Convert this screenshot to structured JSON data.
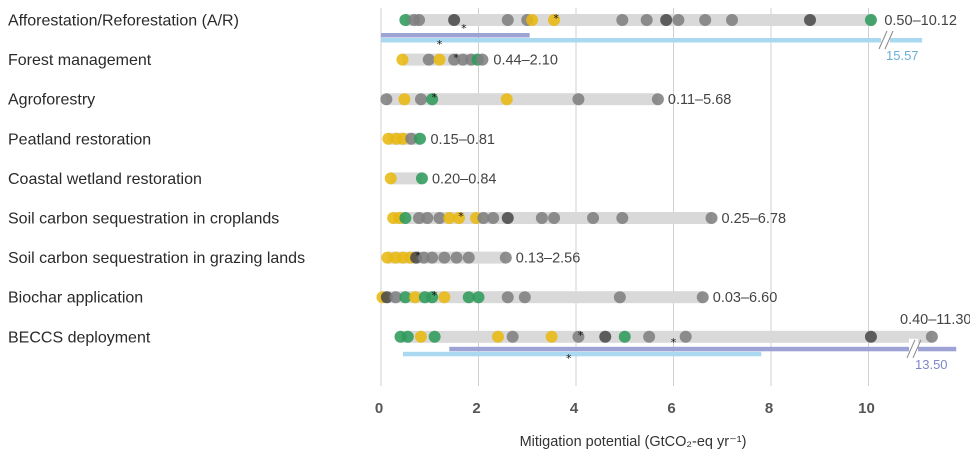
{
  "chart_data": {
    "type": "scatter",
    "xlabel": "Mitigation potential (GtCO₂-eq yr⁻¹)",
    "xticks": [
      0,
      2,
      4,
      6,
      8,
      10
    ],
    "xlim": [
      0,
      11.8
    ],
    "grid": "vertical",
    "colors": {
      "bar": "#d9d9d9",
      "grid": "#d0d0d0",
      "gray": "#7f7f7f",
      "dark": "#4a4a4a",
      "yellow": "#e8b810",
      "green": "#2f9a5b",
      "light_blue": "#a9d8f0",
      "lavender": "#9ea3d6"
    },
    "categories": [
      {
        "name": "Afforestation/Reforestation (A/R)",
        "range_label": "0.50–10.12",
        "range": [
          0.5,
          10.12
        ],
        "points": [
          {
            "x": 0.5,
            "c": "green"
          },
          {
            "x": 0.68,
            "c": "gray"
          },
          {
            "x": 0.78,
            "c": "gray"
          },
          {
            "x": 1.5,
            "c": "dark"
          },
          {
            "x": 2.6,
            "c": "gray"
          },
          {
            "x": 3.0,
            "c": "gray"
          },
          {
            "x": 3.1,
            "c": "yellow"
          },
          {
            "x": 3.55,
            "c": "yellow",
            "star": true
          },
          {
            "x": 4.95,
            "c": "gray"
          },
          {
            "x": 5.45,
            "c": "gray"
          },
          {
            "x": 5.85,
            "c": "dark"
          },
          {
            "x": 6.1,
            "c": "gray"
          },
          {
            "x": 6.65,
            "c": "gray"
          },
          {
            "x": 7.2,
            "c": "gray"
          },
          {
            "x": 8.8,
            "c": "dark"
          },
          {
            "x": 10.05,
            "c": "green"
          }
        ],
        "sub_bars": [
          {
            "from": 0,
            "to": 3.05,
            "c": "lavender",
            "star_x": 1.7
          },
          {
            "from": 0,
            "to": 11.1,
            "c": "light_blue",
            "star_x": 1.2,
            "break": true,
            "value_label": "15.57"
          }
        ]
      },
      {
        "name": "Forest management",
        "range_label": "0.44–2.10",
        "range": [
          0.44,
          2.1
        ],
        "points": [
          {
            "x": 0.44,
            "c": "yellow"
          },
          {
            "x": 0.98,
            "c": "gray"
          },
          {
            "x": 1.2,
            "c": "yellow"
          },
          {
            "x": 1.5,
            "c": "gray",
            "star": true
          },
          {
            "x": 1.68,
            "c": "gray"
          },
          {
            "x": 1.85,
            "c": "gray"
          },
          {
            "x": 1.98,
            "c": "green"
          },
          {
            "x": 2.08,
            "c": "gray"
          }
        ]
      },
      {
        "name": "Agroforestry",
        "range_label": "0.11–5.68",
        "range": [
          0.11,
          5.68
        ],
        "points": [
          {
            "x": 0.11,
            "c": "gray"
          },
          {
            "x": 0.48,
            "c": "yellow"
          },
          {
            "x": 0.82,
            "c": "gray"
          },
          {
            "x": 1.05,
            "c": "green",
            "star": true
          },
          {
            "x": 2.58,
            "c": "yellow"
          },
          {
            "x": 4.05,
            "c": "gray"
          },
          {
            "x": 5.68,
            "c": "gray"
          }
        ]
      },
      {
        "name": "Peatland restoration",
        "range_label": "0.15–0.81",
        "range": [
          0.15,
          0.81
        ],
        "points": [
          {
            "x": 0.15,
            "c": "yellow"
          },
          {
            "x": 0.32,
            "c": "yellow"
          },
          {
            "x": 0.45,
            "c": "yellow"
          },
          {
            "x": 0.62,
            "c": "gray"
          },
          {
            "x": 0.8,
            "c": "green"
          }
        ]
      },
      {
        "name": "Coastal wetland restoration",
        "range_label": "0.20–0.84",
        "range": [
          0.2,
          0.84
        ],
        "points": [
          {
            "x": 0.2,
            "c": "yellow"
          },
          {
            "x": 0.84,
            "c": "green"
          }
        ]
      },
      {
        "name": "Soil carbon sequestration in croplands",
        "range_label": "0.25–6.78",
        "range": [
          0.25,
          6.78
        ],
        "points": [
          {
            "x": 0.25,
            "c": "yellow"
          },
          {
            "x": 0.38,
            "c": "yellow"
          },
          {
            "x": 0.5,
            "c": "green"
          },
          {
            "x": 0.78,
            "c": "gray"
          },
          {
            "x": 0.95,
            "c": "gray"
          },
          {
            "x": 1.2,
            "c": "gray"
          },
          {
            "x": 1.4,
            "c": "yellow"
          },
          {
            "x": 1.6,
            "c": "yellow",
            "star": true
          },
          {
            "x": 1.95,
            "c": "yellow"
          },
          {
            "x": 2.1,
            "c": "gray"
          },
          {
            "x": 2.3,
            "c": "gray"
          },
          {
            "x": 2.6,
            "c": "dark"
          },
          {
            "x": 3.3,
            "c": "gray"
          },
          {
            "x": 3.55,
            "c": "gray"
          },
          {
            "x": 4.35,
            "c": "gray"
          },
          {
            "x": 4.95,
            "c": "gray"
          },
          {
            "x": 6.78,
            "c": "gray"
          }
        ]
      },
      {
        "name": "Soil carbon sequestration in grazing lands",
        "range_label": "0.13–2.56",
        "range": [
          0.13,
          2.56
        ],
        "points": [
          {
            "x": 0.13,
            "c": "yellow"
          },
          {
            "x": 0.3,
            "c": "yellow"
          },
          {
            "x": 0.45,
            "c": "yellow"
          },
          {
            "x": 0.6,
            "c": "yellow"
          },
          {
            "x": 0.72,
            "c": "dark",
            "star": true
          },
          {
            "x": 0.88,
            "c": "gray"
          },
          {
            "x": 1.05,
            "c": "gray"
          },
          {
            "x": 1.3,
            "c": "gray"
          },
          {
            "x": 1.55,
            "c": "gray"
          },
          {
            "x": 1.8,
            "c": "gray"
          },
          {
            "x": 2.56,
            "c": "gray"
          }
        ]
      },
      {
        "name": "Biochar application",
        "range_label": "0.03–6.60",
        "range": [
          0.03,
          6.6
        ],
        "points": [
          {
            "x": 0.03,
            "c": "yellow"
          },
          {
            "x": 0.12,
            "c": "dark"
          },
          {
            "x": 0.3,
            "c": "gray"
          },
          {
            "x": 0.5,
            "c": "green"
          },
          {
            "x": 0.7,
            "c": "yellow"
          },
          {
            "x": 0.9,
            "c": "green"
          },
          {
            "x": 1.05,
            "c": "green",
            "star": true
          },
          {
            "x": 1.3,
            "c": "yellow"
          },
          {
            "x": 1.8,
            "c": "green"
          },
          {
            "x": 2.0,
            "c": "green"
          },
          {
            "x": 2.6,
            "c": "gray"
          },
          {
            "x": 2.95,
            "c": "gray"
          },
          {
            "x": 4.9,
            "c": "gray"
          },
          {
            "x": 6.6,
            "c": "gray"
          }
        ]
      },
      {
        "name": "BECCS deployment",
        "range_label": "0.40–11.30",
        "range": [
          0.4,
          11.3
        ],
        "points": [
          {
            "x": 0.4,
            "c": "green"
          },
          {
            "x": 0.55,
            "c": "green"
          },
          {
            "x": 0.82,
            "c": "yellow"
          },
          {
            "x": 1.1,
            "c": "green"
          },
          {
            "x": 2.4,
            "c": "yellow"
          },
          {
            "x": 2.7,
            "c": "gray"
          },
          {
            "x": 3.5,
            "c": "yellow"
          },
          {
            "x": 4.05,
            "c": "gray",
            "star": true
          },
          {
            "x": 4.6,
            "c": "dark"
          },
          {
            "x": 5.0,
            "c": "green"
          },
          {
            "x": 5.5,
            "c": "gray"
          },
          {
            "x": 6.25,
            "c": "gray"
          },
          {
            "x": 10.05,
            "c": "dark"
          },
          {
            "x": 11.3,
            "c": "gray"
          }
        ],
        "sub_bars": [
          {
            "from": 1.4,
            "to": 11.8,
            "c": "lavender",
            "star_x": 6.0,
            "break": true,
            "value_label": "13.50"
          },
          {
            "from": 0.45,
            "to": 7.8,
            "c": "light_blue",
            "star_x": 3.85
          }
        ]
      }
    ]
  }
}
